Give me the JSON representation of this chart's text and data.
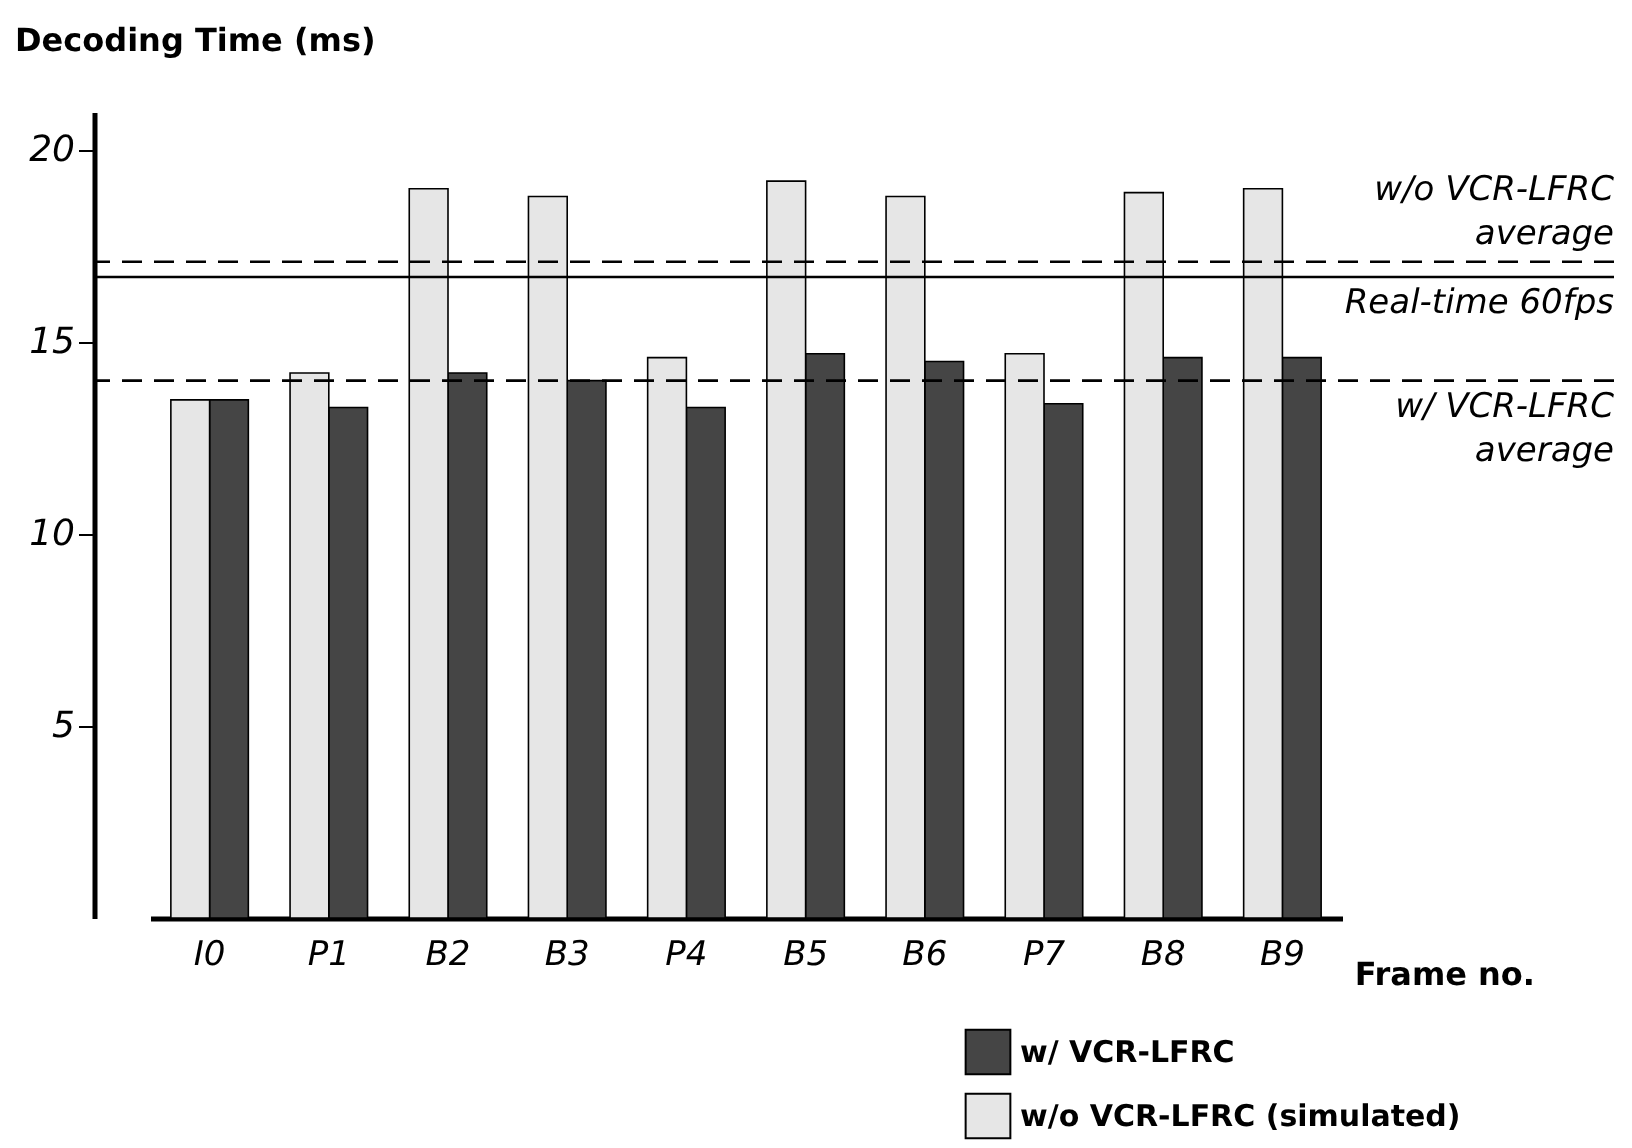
{
  "chart_data": {
    "type": "bar",
    "xlabel": "Frame no.",
    "ylabel": "Decoding Time (ms)",
    "categories": [
      "I0",
      "P1",
      "B2",
      "B3",
      "P4",
      "B5",
      "B6",
      "P7",
      "B8",
      "B9"
    ],
    "series": [
      {
        "name": "w/ VCR-LFRC",
        "color": "#454545",
        "values": [
          13.5,
          13.3,
          14.2,
          14.0,
          13.3,
          14.7,
          14.5,
          13.4,
          14.6,
          14.6
        ]
      },
      {
        "name": "w/o VCR-LFRC (simulated)",
        "color": "#e6e6e6",
        "values": [
          13.5,
          14.2,
          19.0,
          18.8,
          14.6,
          19.2,
          18.8,
          14.7,
          18.9,
          19.0
        ]
      }
    ],
    "ylim": [
      0,
      21
    ],
    "yticks": [
      5,
      10,
      15,
      20
    ],
    "grid": false,
    "legend": "bottom right",
    "ref_lines": [
      {
        "axis": "y",
        "value": 17.1,
        "label": "w/o VCR-LFRC\naverage",
        "line_style": "dashed",
        "color": "#000000"
      },
      {
        "axis": "y",
        "value": 16.7,
        "label": "Real-time 60fps",
        "line_style": "solid",
        "color": "#000000"
      },
      {
        "axis": "y",
        "value": 14.0,
        "label": "w/ VCR-LFRC\naverage",
        "line_style": "dashed",
        "color": "#000000"
      }
    ]
  }
}
